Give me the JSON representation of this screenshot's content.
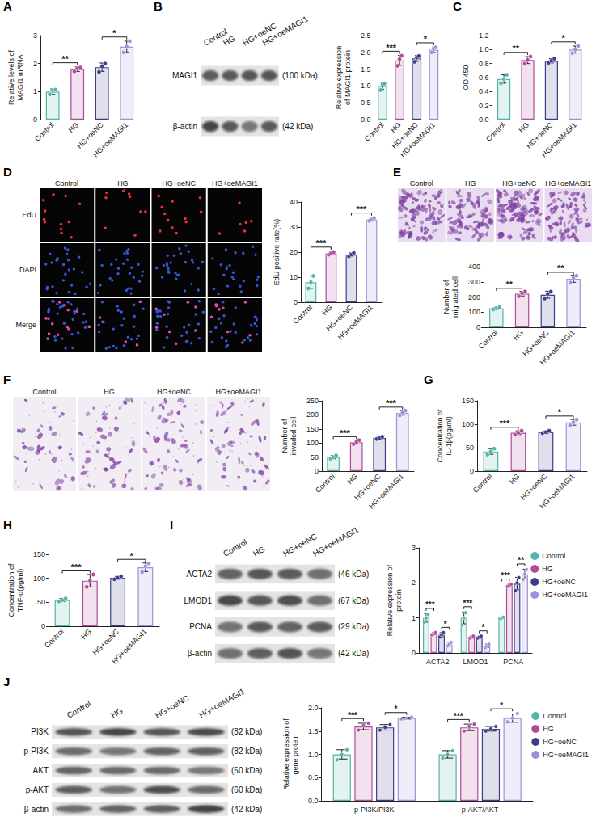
{
  "chart_data": [
    {
      "panel_label": "A",
      "type": "bar",
      "ylabel": "Relative levels of MAGI1 mRNA",
      "categories": [
        "Control",
        "HG",
        "HG+oeNC",
        "HG+oeMAGI1"
      ],
      "colors": [
        "#52b5a8",
        "#b04a9b",
        "#3c3c8c",
        "#9d91d8"
      ],
      "values": [
        1.0,
        1.8,
        1.87,
        2.6
      ],
      "errors": [
        0.1,
        0.08,
        0.15,
        0.2
      ],
      "points": [
        [
          0.9,
          1.05,
          1.07
        ],
        [
          1.72,
          1.83,
          1.86
        ],
        [
          1.7,
          1.9,
          2.0
        ],
        [
          2.4,
          2.6,
          2.8
        ]
      ],
      "ylim": [
        0,
        3
      ],
      "yticks": [
        0,
        1,
        2,
        3
      ],
      "grid": false,
      "annotations": [
        {
          "from": "Control",
          "to": "HG",
          "text": "**"
        },
        {
          "from": "HG+oeNC",
          "to": "HG+oeMAGI1",
          "text": "*"
        }
      ]
    },
    {
      "panel_label": "B",
      "type": "bar",
      "ylabel": "Relative expression of MAGI1 protein",
      "categories": [
        "Control",
        "HG",
        "HG+oeNC",
        "HG+oeMAGI1"
      ],
      "colors": [
        "#52b5a8",
        "#b04a9b",
        "#3c3c8c",
        "#9d91d8"
      ],
      "values": [
        1.0,
        1.76,
        1.82,
        2.08
      ],
      "errors": [
        0.1,
        0.15,
        0.09,
        0.08
      ],
      "points": [
        [
          0.88,
          1.05,
          1.07
        ],
        [
          1.6,
          1.8,
          1.9
        ],
        [
          1.72,
          1.85,
          1.89
        ],
        [
          2.0,
          2.1,
          2.15
        ]
      ],
      "ylim": [
        0,
        2.5
      ],
      "yticks": [
        {
          "value": 0,
          "label": "0.0"
        },
        0.5,
        {
          "value": 1,
          "label": "1.0"
        },
        1.5,
        {
          "value": 2,
          "label": "2.0"
        },
        2.5
      ],
      "grid": false,
      "annotations": [
        {
          "from": "Control",
          "to": "HG",
          "text": "***"
        },
        {
          "from": "HG+oeNC",
          "to": "HG+oeMAGI1",
          "text": "*"
        }
      ]
    },
    {
      "panel_label": "C",
      "type": "bar",
      "ylabel": "OD 450",
      "categories": [
        "Control",
        "HG",
        "HG+oeNC",
        "HG+oeMAGI1"
      ],
      "colors": [
        "#52b5a8",
        "#b04a9b",
        "#3c3c8c",
        "#9d91d8"
      ],
      "values": [
        0.58,
        0.85,
        0.84,
        1.0
      ],
      "errors": [
        0.06,
        0.05,
        0.03,
        0.05
      ],
      "points": [
        [
          0.52,
          0.58,
          0.64
        ],
        [
          0.8,
          0.85,
          0.9
        ],
        [
          0.81,
          0.84,
          0.87
        ],
        [
          0.95,
          1.0,
          1.05
        ]
      ],
      "ylim": [
        0,
        1.2
      ],
      "yticks": [
        {
          "value": 0,
          "label": "0.0"
        },
        0.2,
        0.4,
        0.6,
        0.8,
        {
          "value": 1,
          "label": "1.0"
        },
        1.2
      ],
      "grid": false,
      "annotations": [
        {
          "from": "Control",
          "to": "HG",
          "text": "**"
        },
        {
          "from": "HG+oeNC",
          "to": "HG+oeMAGI1",
          "text": "*"
        }
      ]
    },
    {
      "panel_label": "D",
      "type": "bar",
      "ylabel": "EdU positive rate(%)",
      "categories": [
        "Control",
        "HG",
        "HG+oeNC",
        "HG+oeMAGI1"
      ],
      "colors": [
        "#52b5a8",
        "#b04a9b",
        "#3c3c8c",
        "#9d91d8"
      ],
      "values": [
        8,
        19.5,
        19,
        33
      ],
      "errors": [
        2.5,
        0.5,
        0.7,
        0.6
      ],
      "points": [
        [
          5.5,
          8,
          10.5
        ],
        [
          19,
          19.5,
          20
        ],
        [
          18.3,
          19,
          19.7
        ],
        [
          32.5,
          33,
          33.6
        ]
      ],
      "ylim": [
        0,
        40
      ],
      "yticks": [
        0,
        10,
        20,
        30,
        40
      ],
      "grid": false,
      "annotations": [
        {
          "from": "Control",
          "to": "HG",
          "text": "***"
        },
        {
          "from": "HG+oeNC",
          "to": "HG+oeMAGI1",
          "text": "***"
        }
      ]
    },
    {
      "panel_label": "E",
      "type": "bar",
      "ylabel": "Number of migrated cell",
      "categories": [
        "Control",
        "HG",
        "HG+oeNC",
        "HG+oeMAGI1"
      ],
      "colors": [
        "#52b5a8",
        "#b04a9b",
        "#3c3c8c",
        "#9d91d8"
      ],
      "values": [
        125,
        222,
        215,
        320
      ],
      "errors": [
        7,
        15,
        23,
        23
      ],
      "points": [
        [
          118,
          125,
          132
        ],
        [
          205,
          225,
          236
        ],
        [
          190,
          220,
          235
        ],
        [
          295,
          325,
          340
        ]
      ],
      "ylim": [
        0,
        400
      ],
      "yticks": [
        0,
        100,
        200,
        300,
        400
      ],
      "grid": false,
      "annotations": [
        {
          "from": "Control",
          "to": "HG",
          "text": "**"
        },
        {
          "from": "HG+oeNC",
          "to": "HG+oeMAGI1",
          "text": "**"
        }
      ]
    },
    {
      "panel_label": "F",
      "type": "bar",
      "ylabel": "Number of invaded cell",
      "categories": [
        "Control",
        "HG",
        "HG+oeNC",
        "HG+oeMAGI1"
      ],
      "colors": [
        "#52b5a8",
        "#b04a9b",
        "#3c3c8c",
        "#9d91d8"
      ],
      "values": [
        50,
        103,
        118,
        207
      ],
      "errors": [
        6,
        7,
        4,
        8
      ],
      "points": [
        [
          44,
          50,
          56
        ],
        [
          96,
          103,
          110
        ],
        [
          114,
          118,
          122
        ],
        [
          198,
          208,
          215
        ]
      ],
      "ylim": [
        0,
        250
      ],
      "yticks": [
        0,
        50,
        100,
        150,
        200,
        250
      ],
      "grid": false,
      "annotations": [
        {
          "from": "Control",
          "to": "HG",
          "text": "***"
        },
        {
          "from": "HG+oeNC",
          "to": "HG+oeMAGI1",
          "text": "***"
        }
      ]
    },
    {
      "panel_label": "G",
      "type": "bar",
      "ylabel": "Concentration of IL-1β(pg/ml)",
      "categories": [
        "Control",
        "HG",
        "HG+oeNC",
        "HG+oeMAGI1"
      ],
      "colors": [
        "#52b5a8",
        "#b04a9b",
        "#3c3c8c",
        "#9d91d8"
      ],
      "values": [
        42,
        82,
        83,
        104
      ],
      "errors": [
        6,
        4,
        2.5,
        6
      ],
      "points": [
        [
          35,
          42,
          48
        ],
        [
          78,
          82,
          86
        ],
        [
          81,
          83,
          86
        ],
        [
          98,
          104,
          110
        ]
      ],
      "ylim": [
        0,
        150
      ],
      "yticks": [
        0,
        50,
        100,
        150
      ],
      "grid": false,
      "annotations": [
        {
          "from": "Control",
          "to": "HG",
          "text": "***"
        },
        {
          "from": "HG+oeNC",
          "to": "HG+oeMAGI1",
          "text": "*"
        }
      ]
    },
    {
      "panel_label": "H",
      "type": "bar",
      "ylabel": "Concentration of TNF-α(pg/ml)",
      "categories": [
        "Control",
        "HG",
        "HG+oeNC",
        "HG+oeMAGI1"
      ],
      "colors": [
        "#52b5a8",
        "#b04a9b",
        "#3c3c8c",
        "#9d91d8"
      ],
      "values": [
        55,
        95,
        101,
        123
      ],
      "errors": [
        3,
        13,
        3,
        9
      ],
      "points": [
        [
          52,
          55,
          58
        ],
        [
          82,
          95,
          108
        ],
        [
          98,
          101,
          104
        ],
        [
          113,
          125,
          131
        ]
      ],
      "ylim": [
        0,
        150
      ],
      "yticks": [
        0,
        50,
        100,
        150
      ],
      "grid": false,
      "annotations": [
        {
          "from": "Control",
          "to": "HG",
          "text": "***"
        },
        {
          "from": "HG+oeNC",
          "to": "HG+oeMAGI1",
          "text": "*"
        }
      ]
    },
    {
      "panel_label": "I",
      "type": "bar",
      "ylabel": "Relative expression of protein",
      "categories": [
        "ACTA2",
        "LMOD1",
        "PCNA"
      ],
      "series": [
        {
          "name": "Control",
          "color": "#52b5a8",
          "values": [
            1.0,
            1.0,
            1.0
          ],
          "errors": [
            0.12,
            0.17,
            0.02
          ],
          "points": [
            [
              0.87,
              1.0,
              1.1
            ],
            [
              0.8,
              1.0,
              1.15
            ],
            [
              0.98,
              1.0,
              1.02
            ]
          ]
        },
        {
          "name": "HG",
          "color": "#b04a9b",
          "values": [
            0.55,
            0.45,
            1.93
          ],
          "errors": [
            0.03,
            0.03,
            0.03
          ],
          "points": [
            [
              0.52,
              0.55,
              0.58
            ],
            [
              0.42,
              0.45,
              0.48
            ],
            [
              1.9,
              1.93,
              1.96
            ]
          ]
        },
        {
          "name": "HG+oeNC",
          "color": "#3c3c8c",
          "values": [
            0.52,
            0.45,
            1.98
          ],
          "errors": [
            0.06,
            0.03,
            0.18
          ],
          "points": [
            [
              0.45,
              0.52,
              0.58
            ],
            [
              0.42,
              0.45,
              0.48
            ],
            [
              1.78,
              2.0,
              2.15
            ]
          ]
        },
        {
          "name": "HG+oeMAGI1",
          "color": "#9d91d8",
          "values": [
            0.25,
            0.2,
            2.25
          ],
          "errors": [
            0.05,
            0.05,
            0.14
          ],
          "points": [
            [
              0.2,
              0.25,
              0.3
            ],
            [
              0.15,
              0.2,
              0.25
            ],
            [
              2.1,
              2.25,
              2.38
            ]
          ]
        }
      ],
      "ylim": [
        0,
        3
      ],
      "yticks": [
        0,
        1,
        2,
        3
      ],
      "grid": false,
      "legend": "right",
      "annotations": [
        {
          "category": "ACTA2",
          "from": "Control",
          "to": "HG",
          "text": "***"
        },
        {
          "category": "ACTA2",
          "from": "HG+oeNC",
          "to": "HG+oeMAGI1",
          "text": "*"
        },
        {
          "category": "LMOD1",
          "from": "Control",
          "to": "HG",
          "text": "***"
        },
        {
          "category": "LMOD1",
          "from": "HG+oeNC",
          "to": "HG+oeMAGI1",
          "text": "*"
        },
        {
          "category": "PCNA",
          "from": "Control",
          "to": "HG",
          "text": "***"
        },
        {
          "category": "PCNA",
          "from": "HG+oeNC",
          "to": "HG+oeMAGI1",
          "text": "**"
        }
      ]
    },
    {
      "panel_label": "J",
      "type": "bar",
      "ylabel": "Relative expression of gene protein",
      "categories": [
        "p-PI3K/PI3K",
        "p-AKT/AKT"
      ],
      "series": [
        {
          "name": "Control",
          "color": "#52b5a8",
          "values": [
            1.0,
            1.0
          ],
          "errors": [
            0.1,
            0.08
          ],
          "points": [
            [
              0.88,
              1.0,
              1.1
            ],
            [
              0.92,
              1.0,
              1.08
            ]
          ]
        },
        {
          "name": "HG",
          "color": "#b04a9b",
          "values": [
            1.6,
            1.58
          ],
          "errors": [
            0.07,
            0.07
          ],
          "points": [
            [
              1.52,
              1.62,
              1.67
            ],
            [
              1.5,
              1.6,
              1.65
            ]
          ]
        },
        {
          "name": "HG+oeNC",
          "color": "#3c3c8c",
          "values": [
            1.58,
            1.55
          ],
          "errors": [
            0.06,
            0.05
          ],
          "points": [
            [
              1.52,
              1.58,
              1.64
            ],
            [
              1.5,
              1.55,
              1.6
            ]
          ]
        },
        {
          "name": "HG+oeMAGI1",
          "color": "#9d91d8",
          "values": [
            1.78,
            1.78
          ],
          "errors": [
            0.02,
            0.09
          ],
          "points": [
            [
              1.76,
              1.78,
              1.8
            ],
            [
              1.7,
              1.78,
              1.88
            ]
          ]
        }
      ],
      "ylim": [
        0,
        2
      ],
      "yticks": [
        {
          "value": 0,
          "label": "0.0"
        },
        0.5,
        {
          "value": 1,
          "label": "1.0"
        },
        1.5,
        {
          "value": 2,
          "label": "2.0"
        }
      ],
      "grid": false,
      "legend": "right",
      "annotations": [
        {
          "category": "p-PI3K/PI3K",
          "from": "Control",
          "to": "HG",
          "text": "***"
        },
        {
          "category": "p-PI3K/PI3K",
          "from": "HG+oeNC",
          "to": "HG+oeMAGI1",
          "text": "*"
        },
        {
          "category": "p-AKT/AKT",
          "from": "Control",
          "to": "HG",
          "text": "***"
        },
        {
          "category": "p-AKT/AKT",
          "from": "HG+oeNC",
          "to": "HG+oeMAGI1",
          "text": "*"
        }
      ]
    }
  ],
  "blots": [
    {
      "lanes": [
        "Control",
        "HG",
        "HG+oeNC",
        "HG+oeMAGI1"
      ],
      "rows": [
        {
          "protein": "MAGI1",
          "size": "(100 kDa)"
        },
        {
          "protein": "β-actin",
          "size": "(42 kDa)"
        }
      ]
    },
    {
      "lanes": [
        "Control",
        "HG",
        "HG+oeNC",
        "HG+oeMAGI1"
      ],
      "rows": [
        {
          "protein": "ACTA2",
          "size": "(46 kDa)"
        },
        {
          "protein": "LMOD1",
          "size": "(67 kDa)"
        },
        {
          "protein": "PCNA",
          "size": "(29 kDa)"
        },
        {
          "protein": "β-actin",
          "size": "(42 kDa)"
        }
      ]
    },
    {
      "lanes": [
        "Control",
        "HG",
        "HG+oeNC",
        "HG+oeMAGI1"
      ],
      "rows": [
        {
          "protein": "PI3K",
          "size": "(82 kDa)"
        },
        {
          "protein": "p-PI3K",
          "size": "(82 kDa)"
        },
        {
          "protein": "AKT",
          "size": "(60 kDa)"
        },
        {
          "protein": "p-AKT",
          "size": "(60 kDa)"
        },
        {
          "protein": "β-actin",
          "size": "(42 kDa)"
        }
      ]
    }
  ],
  "images": [
    {
      "columns": [
        "Control",
        "HG",
        "HG+oeNC",
        "HG+oeMAGI1"
      ],
      "rows": [
        "EdU",
        "DAPI",
        "Merge"
      ]
    },
    {
      "columns": [
        "Control",
        "HG",
        "HG+oeNC",
        "HG+oeMAGI1"
      ]
    },
    {
      "columns": [
        "Control",
        "HG",
        "HG+oeNC",
        "HG+oeMAGI1"
      ]
    }
  ]
}
